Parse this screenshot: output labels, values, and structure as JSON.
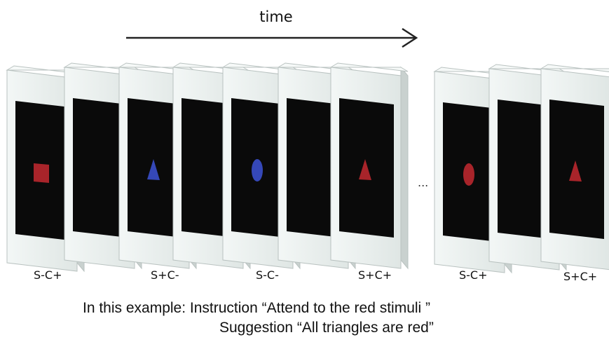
{
  "time_label": "time",
  "ellipsis": "...",
  "conditions": [
    "S-C+",
    "S+C-",
    "S-C-",
    "S+C+",
    "S-C+",
    "S+C+"
  ],
  "caption": {
    "line1": "In this example: Instruction “Attend to the red stimuli ”",
    "line2": "Suggestion “All triangles are red”"
  },
  "colors": {
    "red": "#a8242a",
    "blue": "#3548b8",
    "card": "#e9efed",
    "card_edge": "#b9c2c0",
    "screen": "#0a0a0a"
  },
  "frames": [
    {
      "shape": "square",
      "color": "red"
    },
    {
      "shape": "none"
    },
    {
      "shape": "triangle",
      "color": "blue"
    },
    {
      "shape": "none"
    },
    {
      "shape": "ellipse",
      "color": "blue"
    },
    {
      "shape": "none"
    },
    {
      "shape": "triangle",
      "color": "red"
    },
    {
      "shape": "ellipse",
      "color": "red"
    },
    {
      "shape": "none"
    },
    {
      "shape": "triangle",
      "color": "red"
    }
  ]
}
